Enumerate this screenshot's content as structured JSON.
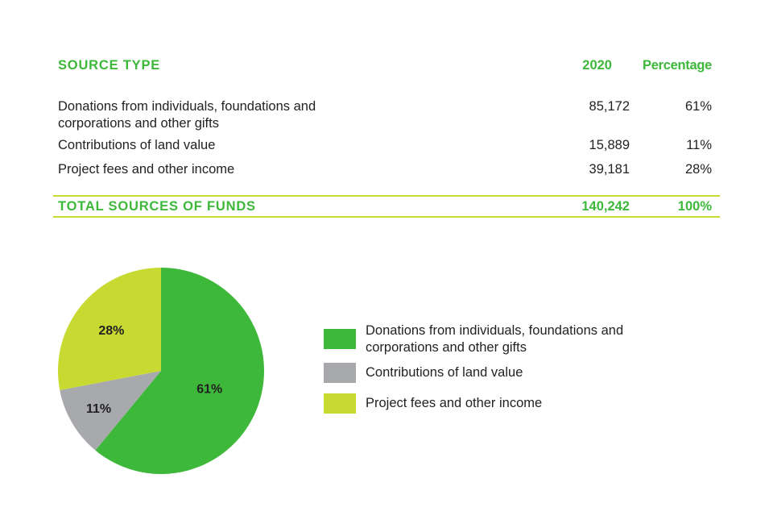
{
  "table": {
    "header": {
      "source": "SOURCE TYPE",
      "year": "2020",
      "percentage": "Percentage"
    },
    "rows": [
      {
        "source": "Donations from individuals, foundations and corporations and other gifts",
        "value": "85,172",
        "pct": "61%"
      },
      {
        "source": "Contributions of land value",
        "value": "15,889",
        "pct": "11%"
      },
      {
        "source": "Project fees and other income",
        "value": "39,181",
        "pct": "28%"
      }
    ],
    "total": {
      "source": "TOTAL SOURCES OF FUNDS",
      "value": "140,242",
      "pct": "100%"
    }
  },
  "chart_data": {
    "type": "pie",
    "categories": [
      "Donations from individuals, foundations and corporations and other gifts",
      "Contributions of land value",
      "Project fees and other income"
    ],
    "values": [
      61,
      11,
      28
    ],
    "labels": [
      "61%",
      "11%",
      "28%"
    ],
    "colors": [
      "#3db83a",
      "#a7a9ac",
      "#c8d932"
    ],
    "title": "",
    "legend_position": "right"
  }
}
